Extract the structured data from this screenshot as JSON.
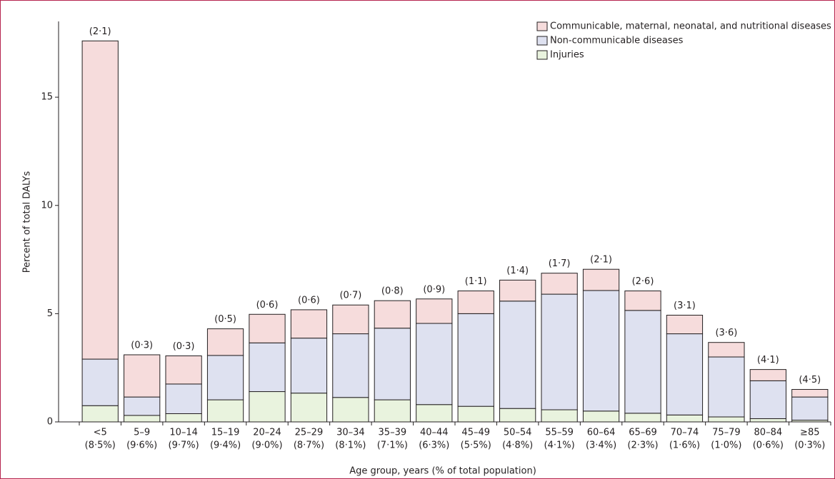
{
  "chart_data": {
    "type": "stacked-bar",
    "ylabel": "Percent of total DALYs",
    "xlabel": "Age group, years (% of total population)",
    "categories": [
      "<5",
      "5–9",
      "10–14",
      "15–19",
      "20–24",
      "25–29",
      "30–34",
      "35–39",
      "40–44",
      "45–49",
      "50–54",
      "55–59",
      "60–64",
      "65–69",
      "70–74",
      "75–79",
      "80–84",
      "≥85"
    ],
    "category_sublabels": [
      "(8·5%)",
      "(9·6%)",
      "(9·7%)",
      "(9·4%)",
      "(9·0%)",
      "(8·7%)",
      "(8·1%)",
      "(7·1%)",
      "(6·3%)",
      "(5·5%)",
      "(4·8%)",
      "(4·1%)",
      "(3·4%)",
      "(2·3%)",
      "(1·6%)",
      "(1·0%)",
      "(0·6%)",
      "(0·3%)"
    ],
    "bar_annotations": [
      "(2·1)",
      "(0·3)",
      "(0·3)",
      "(0·5)",
      "(0·6)",
      "(0·6)",
      "(0·7)",
      "(0·8)",
      "(0·9)",
      "(1·1)",
      "(1·4)",
      "(1·7)",
      "(2·1)",
      "(2·6)",
      "(3·1)",
      "(3·6)",
      "(4·1)",
      "(4·5)"
    ],
    "series": [
      {
        "name": "Injuries",
        "color": "#e9f3de",
        "values": [
          0.75,
          0.3,
          0.38,
          1.02,
          1.4,
          1.33,
          1.13,
          1.02,
          0.8,
          0.72,
          0.62,
          0.56,
          0.5,
          0.4,
          0.32,
          0.23,
          0.15,
          0.08
        ]
      },
      {
        "name": "Non-communicable diseases",
        "color": "#dee1f0",
        "values": [
          2.15,
          0.85,
          1.37,
          2.05,
          2.25,
          2.54,
          2.94,
          3.31,
          3.75,
          4.28,
          4.96,
          5.34,
          5.57,
          4.75,
          3.75,
          2.77,
          1.75,
          1.07
        ]
      },
      {
        "name": "Communicable, maternal, neonatal, and nutritional diseases",
        "color": "#f6dcdc",
        "values": [
          14.7,
          1.95,
          1.3,
          1.23,
          1.32,
          1.31,
          1.33,
          1.27,
          1.13,
          1.05,
          0.97,
          0.97,
          0.98,
          0.9,
          0.86,
          0.67,
          0.52,
          0.35
        ]
      }
    ],
    "legend_order": [
      2,
      1,
      0
    ],
    "ylim": [
      0,
      18.5
    ],
    "yticks": [
      0,
      5,
      10,
      15
    ]
  }
}
